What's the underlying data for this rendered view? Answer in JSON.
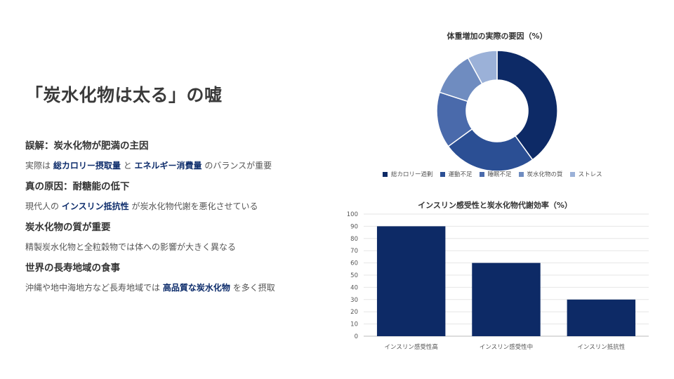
{
  "slide": {
    "title": "「炭水化物は太る」の嘘",
    "sections": [
      {
        "heading": "誤解：炭水化物が肥満の主因",
        "parts": [
          {
            "text": "実際は",
            "em": false
          },
          {
            "text": "総カロリー摂取量",
            "em": true
          },
          {
            "text": "と",
            "em": false
          },
          {
            "text": "エネルギー消費量",
            "em": true
          },
          {
            "text": "のバランスが重要",
            "em": false
          }
        ]
      },
      {
        "heading": "真の原因：耐糖能の低下",
        "parts": [
          {
            "text": "現代人の",
            "em": false
          },
          {
            "text": "インスリン抵抗性",
            "em": true
          },
          {
            "text": "が炭水化物代謝を悪化させている",
            "em": false
          }
        ]
      },
      {
        "heading": "炭水化物の質が重要",
        "parts": [
          {
            "text": "精製炭水化物と全粒穀物では体への影響が大きく異なる",
            "em": false
          }
        ]
      },
      {
        "heading": "世界の長寿地域の食事",
        "parts": [
          {
            "text": "沖縄や地中海地方など長寿地域では",
            "em": false
          },
          {
            "text": "高品質な炭水化物",
            "em": true
          },
          {
            "text": "を多く摂取",
            "em": false
          }
        ]
      }
    ]
  },
  "chart_data": [
    {
      "type": "pie",
      "donut": true,
      "title": "体重増加の実際の要因（%）",
      "categories": [
        "総カロリー過剰",
        "運動不足",
        "睡眠不足",
        "炭水化物の質",
        "ストレス"
      ],
      "values": [
        40,
        25,
        15,
        12,
        8
      ],
      "colors": [
        "#0d2a66",
        "#2b4f94",
        "#4a6aab",
        "#6f8cc0",
        "#9bb1d8"
      ],
      "legend": "bottom"
    },
    {
      "type": "bar",
      "title": "インスリン感受性と炭水化物代謝効率（%）",
      "categories": [
        "インスリン感受性高",
        "インスリン感受性中",
        "インスリン抵抗性"
      ],
      "values": [
        90,
        60,
        30
      ],
      "ylim": [
        0,
        100
      ],
      "yticks": [
        0,
        10,
        20,
        30,
        40,
        50,
        60,
        70,
        80,
        90,
        100
      ],
      "grid": true,
      "color": "#0d2a66"
    }
  ]
}
